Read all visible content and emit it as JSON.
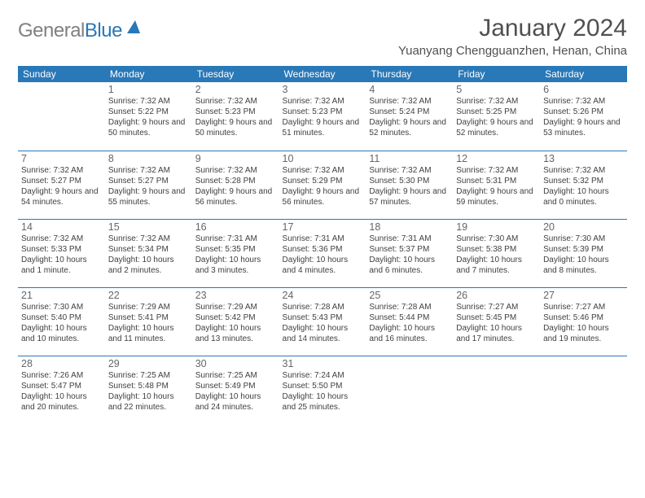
{
  "logo": {
    "text1": "General",
    "text2": "Blue"
  },
  "title": "January 2024",
  "location": "Yuanyang Chengguanzhen, Henan, China",
  "columns": [
    "Sunday",
    "Monday",
    "Tuesday",
    "Wednesday",
    "Thursday",
    "Friday",
    "Saturday"
  ],
  "colors": {
    "accent": "#2978b8",
    "text": "#404040",
    "bg": "#ffffff",
    "header_text": "#ffffff"
  },
  "weeks": [
    [
      null,
      {
        "n": "1",
        "sr": "7:32 AM",
        "ss": "5:22 PM",
        "dl": "9 hours and 50 minutes."
      },
      {
        "n": "2",
        "sr": "7:32 AM",
        "ss": "5:23 PM",
        "dl": "9 hours and 50 minutes."
      },
      {
        "n": "3",
        "sr": "7:32 AM",
        "ss": "5:23 PM",
        "dl": "9 hours and 51 minutes."
      },
      {
        "n": "4",
        "sr": "7:32 AM",
        "ss": "5:24 PM",
        "dl": "9 hours and 52 minutes."
      },
      {
        "n": "5",
        "sr": "7:32 AM",
        "ss": "5:25 PM",
        "dl": "9 hours and 52 minutes."
      },
      {
        "n": "6",
        "sr": "7:32 AM",
        "ss": "5:26 PM",
        "dl": "9 hours and 53 minutes."
      }
    ],
    [
      {
        "n": "7",
        "sr": "7:32 AM",
        "ss": "5:27 PM",
        "dl": "9 hours and 54 minutes."
      },
      {
        "n": "8",
        "sr": "7:32 AM",
        "ss": "5:27 PM",
        "dl": "9 hours and 55 minutes."
      },
      {
        "n": "9",
        "sr": "7:32 AM",
        "ss": "5:28 PM",
        "dl": "9 hours and 56 minutes."
      },
      {
        "n": "10",
        "sr": "7:32 AM",
        "ss": "5:29 PM",
        "dl": "9 hours and 56 minutes."
      },
      {
        "n": "11",
        "sr": "7:32 AM",
        "ss": "5:30 PM",
        "dl": "9 hours and 57 minutes."
      },
      {
        "n": "12",
        "sr": "7:32 AM",
        "ss": "5:31 PM",
        "dl": "9 hours and 59 minutes."
      },
      {
        "n": "13",
        "sr": "7:32 AM",
        "ss": "5:32 PM",
        "dl": "10 hours and 0 minutes."
      }
    ],
    [
      {
        "n": "14",
        "sr": "7:32 AM",
        "ss": "5:33 PM",
        "dl": "10 hours and 1 minute."
      },
      {
        "n": "15",
        "sr": "7:32 AM",
        "ss": "5:34 PM",
        "dl": "10 hours and 2 minutes."
      },
      {
        "n": "16",
        "sr": "7:31 AM",
        "ss": "5:35 PM",
        "dl": "10 hours and 3 minutes."
      },
      {
        "n": "17",
        "sr": "7:31 AM",
        "ss": "5:36 PM",
        "dl": "10 hours and 4 minutes."
      },
      {
        "n": "18",
        "sr": "7:31 AM",
        "ss": "5:37 PM",
        "dl": "10 hours and 6 minutes."
      },
      {
        "n": "19",
        "sr": "7:30 AM",
        "ss": "5:38 PM",
        "dl": "10 hours and 7 minutes."
      },
      {
        "n": "20",
        "sr": "7:30 AM",
        "ss": "5:39 PM",
        "dl": "10 hours and 8 minutes."
      }
    ],
    [
      {
        "n": "21",
        "sr": "7:30 AM",
        "ss": "5:40 PM",
        "dl": "10 hours and 10 minutes."
      },
      {
        "n": "22",
        "sr": "7:29 AM",
        "ss": "5:41 PM",
        "dl": "10 hours and 11 minutes."
      },
      {
        "n": "23",
        "sr": "7:29 AM",
        "ss": "5:42 PM",
        "dl": "10 hours and 13 minutes."
      },
      {
        "n": "24",
        "sr": "7:28 AM",
        "ss": "5:43 PM",
        "dl": "10 hours and 14 minutes."
      },
      {
        "n": "25",
        "sr": "7:28 AM",
        "ss": "5:44 PM",
        "dl": "10 hours and 16 minutes."
      },
      {
        "n": "26",
        "sr": "7:27 AM",
        "ss": "5:45 PM",
        "dl": "10 hours and 17 minutes."
      },
      {
        "n": "27",
        "sr": "7:27 AM",
        "ss": "5:46 PM",
        "dl": "10 hours and 19 minutes."
      }
    ],
    [
      {
        "n": "28",
        "sr": "7:26 AM",
        "ss": "5:47 PM",
        "dl": "10 hours and 20 minutes."
      },
      {
        "n": "29",
        "sr": "7:25 AM",
        "ss": "5:48 PM",
        "dl": "10 hours and 22 minutes."
      },
      {
        "n": "30",
        "sr": "7:25 AM",
        "ss": "5:49 PM",
        "dl": "10 hours and 24 minutes."
      },
      {
        "n": "31",
        "sr": "7:24 AM",
        "ss": "5:50 PM",
        "dl": "10 hours and 25 minutes."
      },
      null,
      null,
      null
    ]
  ],
  "labels": {
    "sunrise": "Sunrise:",
    "sunset": "Sunset:",
    "daylight": "Daylight:"
  }
}
